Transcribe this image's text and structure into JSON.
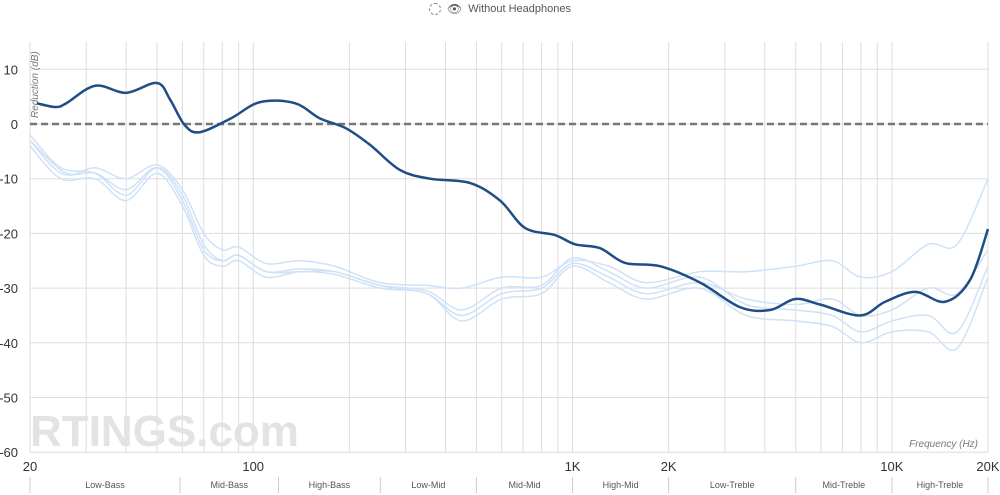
{
  "legend": {
    "loading_icon": "dashed-circle-icon",
    "visibility_icon": "eye-icon",
    "label": "Without Headphones"
  },
  "watermark": "RTINGS.com",
  "colors": {
    "main": "#1f4e85",
    "reference": "#cfe2f6",
    "zero_line": "#777777",
    "grid": "#dddddd"
  },
  "chart_data": {
    "type": "line",
    "xlabel": "Frequency (Hz)",
    "ylabel": "Reduction (dB)",
    "xscale": "log",
    "xlim": [
      20,
      20000
    ],
    "ylim": [
      -60,
      15
    ],
    "grid": true,
    "x_ticks": [
      {
        "v": 20,
        "label": "20"
      },
      {
        "v": 100,
        "label": "100"
      },
      {
        "v": 1000,
        "label": "1K"
      },
      {
        "v": 2000,
        "label": "2K"
      },
      {
        "v": 10000,
        "label": "10K"
      },
      {
        "v": 20000,
        "label": "20K"
      }
    ],
    "y_ticks": [
      10,
      0,
      -10,
      -20,
      -30,
      -40,
      -50,
      -60
    ],
    "reference_line": {
      "y": 0,
      "style": "dashed"
    },
    "bands": [
      {
        "label": "Low-Bass",
        "from": 20,
        "to": 59
      },
      {
        "label": "Mid-Bass",
        "from": 59,
        "to": 120
      },
      {
        "label": "High-Bass",
        "from": 120,
        "to": 250
      },
      {
        "label": "Low-Mid",
        "from": 250,
        "to": 500
      },
      {
        "label": "Mid-Mid",
        "from": 500,
        "to": 1000
      },
      {
        "label": "High-Mid",
        "from": 1000,
        "to": 2000
      },
      {
        "label": "Low-Treble",
        "from": 2000,
        "to": 5000
      },
      {
        "label": "Mid-Treble",
        "from": 5000,
        "to": 10000
      },
      {
        "label": "High-Treble",
        "from": 10000,
        "to": 20000
      }
    ],
    "main_series": [
      [
        21,
        3.8
      ],
      [
        24,
        3.1
      ],
      [
        26,
        3.8
      ],
      [
        32,
        7
      ],
      [
        40,
        5.7
      ],
      [
        50,
        7.5
      ],
      [
        55,
        4.4
      ],
      [
        61,
        -0.2
      ],
      [
        68,
        -1.5
      ],
      [
        85,
        1
      ],
      [
        105,
        4
      ],
      [
        135,
        3.8
      ],
      [
        162,
        1
      ],
      [
        194,
        -0.7
      ],
      [
        232,
        -3.8
      ],
      [
        288,
        -8.4
      ],
      [
        358,
        -10
      ],
      [
        478,
        -10.8
      ],
      [
        593,
        -14
      ],
      [
        710,
        -19
      ],
      [
        881,
        -20.3
      ],
      [
        1020,
        -22
      ],
      [
        1220,
        -22.7
      ],
      [
        1460,
        -25.4
      ],
      [
        1880,
        -26
      ],
      [
        2510,
        -29
      ],
      [
        3350,
        -33.5
      ],
      [
        4160,
        -34
      ],
      [
        4980,
        -32
      ],
      [
        5960,
        -33
      ],
      [
        7950,
        -35
      ],
      [
        9530,
        -32.5
      ],
      [
        11820,
        -30.7
      ],
      [
        14680,
        -32.5
      ],
      [
        17580,
        -28.5
      ],
      [
        20000,
        -19.2
      ]
    ],
    "reference_series": [
      [
        [
          20,
          -3
        ],
        [
          26,
          -9
        ],
        [
          32,
          -8
        ],
        [
          40,
          -10
        ],
        [
          50,
          -7.5
        ],
        [
          60,
          -12
        ],
        [
          70,
          -20
        ],
        [
          80,
          -23
        ],
        [
          90,
          -22.5
        ],
        [
          110,
          -25.5
        ],
        [
          140,
          -25
        ],
        [
          180,
          -26
        ],
        [
          250,
          -29
        ],
        [
          350,
          -29.5
        ],
        [
          450,
          -30
        ],
        [
          600,
          -28
        ],
        [
          800,
          -28
        ],
        [
          1000,
          -25
        ],
        [
          1300,
          -26
        ],
        [
          1700,
          -29
        ],
        [
          2500,
          -27
        ],
        [
          3500,
          -27
        ],
        [
          5000,
          -26
        ],
        [
          6500,
          -25
        ],
        [
          8000,
          -28
        ],
        [
          10000,
          -27
        ],
        [
          13000,
          -22
        ],
        [
          16000,
          -22
        ],
        [
          20000,
          -10
        ]
      ],
      [
        [
          20,
          -2
        ],
        [
          25,
          -8
        ],
        [
          32,
          -9
        ],
        [
          40,
          -13
        ],
        [
          50,
          -8
        ],
        [
          60,
          -13
        ],
        [
          70,
          -22
        ],
        [
          80,
          -25
        ],
        [
          90,
          -24
        ],
        [
          110,
          -27
        ],
        [
          140,
          -27
        ],
        [
          180,
          -27
        ],
        [
          250,
          -29.5
        ],
        [
          350,
          -31
        ],
        [
          450,
          -35
        ],
        [
          600,
          -31
        ],
        [
          800,
          -30
        ],
        [
          1000,
          -25.5
        ],
        [
          1300,
          -28
        ],
        [
          1700,
          -31
        ],
        [
          2500,
          -29
        ],
        [
          3500,
          -32
        ],
        [
          5000,
          -33
        ],
        [
          6500,
          -32
        ],
        [
          8000,
          -35
        ],
        [
          10000,
          -34
        ],
        [
          13000,
          -30
        ],
        [
          16000,
          -31
        ],
        [
          20000,
          -23
        ]
      ],
      [
        [
          20,
          -4
        ],
        [
          25,
          -10
        ],
        [
          32,
          -10
        ],
        [
          40,
          -14
        ],
        [
          50,
          -9
        ],
        [
          60,
          -15
        ],
        [
          70,
          -24
        ],
        [
          80,
          -26
        ],
        [
          90,
          -25
        ],
        [
          110,
          -28
        ],
        [
          140,
          -27
        ],
        [
          180,
          -27.5
        ],
        [
          250,
          -30
        ],
        [
          350,
          -31
        ],
        [
          450,
          -36
        ],
        [
          600,
          -32
        ],
        [
          800,
          -31
        ],
        [
          1000,
          -26
        ],
        [
          1300,
          -29
        ],
        [
          1700,
          -32
        ],
        [
          2500,
          -30
        ],
        [
          3500,
          -35
        ],
        [
          5000,
          -36
        ],
        [
          6500,
          -37
        ],
        [
          8000,
          -40
        ],
        [
          10000,
          -38
        ],
        [
          13000,
          -38
        ],
        [
          16000,
          -41
        ],
        [
          20000,
          -28
        ]
      ],
      [
        [
          20,
          -3
        ],
        [
          25,
          -9
        ],
        [
          32,
          -9
        ],
        [
          40,
          -12
        ],
        [
          50,
          -8
        ],
        [
          60,
          -14
        ],
        [
          70,
          -23
        ],
        [
          80,
          -25
        ],
        [
          90,
          -24
        ],
        [
          110,
          -27
        ],
        [
          140,
          -26.5
        ],
        [
          180,
          -27
        ],
        [
          250,
          -29.5
        ],
        [
          350,
          -30.5
        ],
        [
          450,
          -34
        ],
        [
          600,
          -30
        ],
        [
          800,
          -29.5
        ],
        [
          1000,
          -24.5
        ],
        [
          1300,
          -27
        ],
        [
          1700,
          -30
        ],
        [
          2500,
          -28
        ],
        [
          3500,
          -33
        ],
        [
          5000,
          -34
        ],
        [
          6500,
          -35
        ],
        [
          8000,
          -38
        ],
        [
          10000,
          -36
        ],
        [
          13000,
          -35
        ],
        [
          16000,
          -38
        ],
        [
          20000,
          -26
        ]
      ]
    ]
  }
}
